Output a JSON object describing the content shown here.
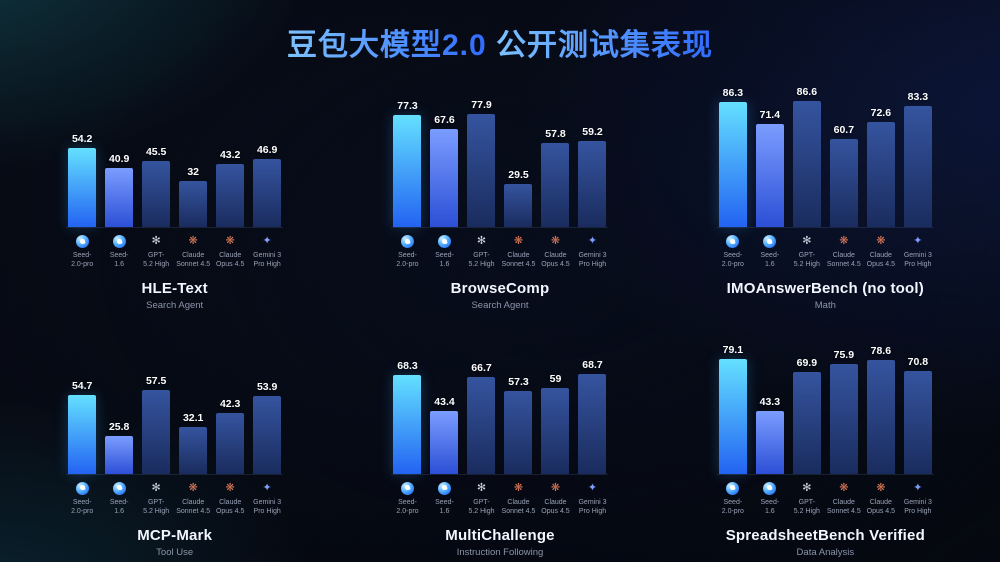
{
  "header": {
    "title_main": "豆包大模型2.0",
    "title_rest": "公开测试集表现"
  },
  "models": [
    {
      "name": "Seed-2.0-pro",
      "label_line1": "Seed-",
      "label_line2": "2.0-pro",
      "icon": "doubao-seed-icon",
      "bar_style": "primary"
    },
    {
      "name": "Seed-1.6",
      "label_line1": "Seed-",
      "label_line2": "1.6",
      "icon": "doubao-seed-icon",
      "bar_style": "secondary"
    },
    {
      "name": "GPT-5.2 High",
      "label_line1": "GPT-",
      "label_line2": "5.2 High",
      "icon": "gpt-icon",
      "bar_style": "default"
    },
    {
      "name": "Claude Sonnet 4.5",
      "label_line1": "Claude",
      "label_line2": "Sonnet 4.5",
      "icon": "claude-icon",
      "bar_style": "default"
    },
    {
      "name": "Claude Opus 4.5",
      "label_line1": "Claude",
      "label_line2": "Opus 4.5",
      "icon": "claude-icon",
      "bar_style": "default"
    },
    {
      "name": "Gemini 3 Pro High",
      "label_line1": "Gemini 3",
      "label_line2": "Pro High",
      "icon": "gemini-icon",
      "bar_style": "default"
    }
  ],
  "chart_data": [
    {
      "type": "bar",
      "title": "HLE-Text",
      "subtitle": "Search Agent",
      "categories": [
        "Seed-2.0-pro",
        "Seed-1.6",
        "GPT-5.2 High",
        "Claude Sonnet 4.5",
        "Claude Opus 4.5",
        "Gemini 3 Pro High"
      ],
      "values": [
        54.2,
        40.9,
        45.5,
        32,
        43.2,
        46.9
      ],
      "ylim": [
        0,
        100
      ],
      "grid": false,
      "legend": "none"
    },
    {
      "type": "bar",
      "title": "BrowseComp",
      "subtitle": "Search Agent",
      "categories": [
        "Seed-2.0-pro",
        "Seed-1.6",
        "GPT-5.2 High",
        "Claude Sonnet 4.5",
        "Claude Opus 4.5",
        "Gemini 3 Pro High"
      ],
      "values": [
        77.3,
        67.6,
        77.9,
        29.5,
        57.8,
        59.2
      ],
      "ylim": [
        0,
        100
      ],
      "grid": false,
      "legend": "none"
    },
    {
      "type": "bar",
      "title": "IMOAnswerBench (no tool)",
      "subtitle": "Math",
      "categories": [
        "Seed-2.0-pro",
        "Seed-1.6",
        "GPT-5.2 High",
        "Claude Sonnet 4.5",
        "Claude Opus 4.5",
        "Gemini 3 Pro High"
      ],
      "values": [
        86.3,
        71.4,
        86.6,
        60.7,
        72.6,
        83.3
      ],
      "ylim": [
        0,
        100
      ],
      "grid": false,
      "legend": "none"
    },
    {
      "type": "bar",
      "title": "MCP-Mark",
      "subtitle": "Tool Use",
      "categories": [
        "Seed-2.0-pro",
        "Seed-1.6",
        "GPT-5.2 High",
        "Claude Sonnet 4.5",
        "Claude Opus 4.5",
        "Gemini 3 Pro High"
      ],
      "values": [
        54.7,
        25.8,
        57.5,
        32.1,
        42.3,
        53.9
      ],
      "ylim": [
        0,
        100
      ],
      "grid": false,
      "legend": "none"
    },
    {
      "type": "bar",
      "title": "MultiChallenge",
      "subtitle": "Instruction Following",
      "categories": [
        "Seed-2.0-pro",
        "Seed-1.6",
        "GPT-5.2 High",
        "Claude Sonnet 4.5",
        "Claude Opus 4.5",
        "Gemini 3 Pro High"
      ],
      "values": [
        68.3,
        43.4,
        66.7,
        57.3,
        59,
        68.7
      ],
      "ylim": [
        0,
        100
      ],
      "grid": false,
      "legend": "none"
    },
    {
      "type": "bar",
      "title": "SpreadsheetBench Verified",
      "subtitle": "Data Analysis",
      "categories": [
        "Seed-2.0-pro",
        "Seed-1.6",
        "GPT-5.2 High",
        "Claude Sonnet 4.5",
        "Claude Opus 4.5",
        "Gemini 3 Pro High"
      ],
      "values": [
        79.1,
        43.3,
        69.9,
        75.9,
        78.6,
        70.8
      ],
      "ylim": [
        0,
        100
      ],
      "grid": false,
      "legend": "none"
    }
  ],
  "colors": {
    "title_gradient_start": "#7cc2ff",
    "title_gradient_end": "#2f6bff",
    "bar_primary_top": "#64e0ff",
    "bar_primary_bottom": "#2363f2",
    "bar_secondary_top": "#7b9dff",
    "bar_secondary_bottom": "#2c4fd6",
    "bar_default_top": "#35549f",
    "bar_default_bottom": "#1a2c5e",
    "value_label": "#ffffff",
    "chart_title": "#f2f6ff",
    "chart_subtitle": "#8b95a9",
    "model_label": "#98a2b6",
    "claude_orange": "#d97757",
    "gemini_blue": "#6f9bff",
    "gpt_gray": "#c9d2dd"
  }
}
